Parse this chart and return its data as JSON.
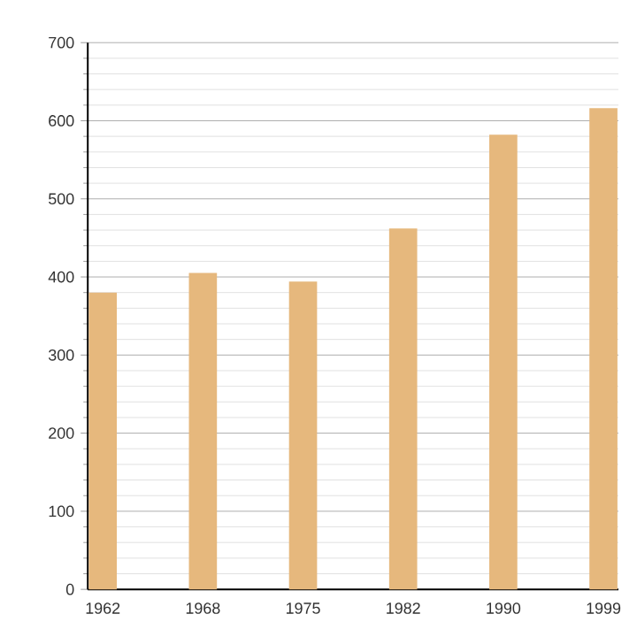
{
  "chart_data": {
    "type": "bar",
    "categories": [
      "1962",
      "1968",
      "1975",
      "1982",
      "1990",
      "1999"
    ],
    "values": [
      380,
      405,
      394,
      462,
      582,
      616
    ],
    "color": "#e6b87d",
    "ylim": [
      0,
      700
    ],
    "yticks": [
      0,
      100,
      200,
      300,
      400,
      500,
      600,
      700
    ],
    "grid": "y"
  }
}
